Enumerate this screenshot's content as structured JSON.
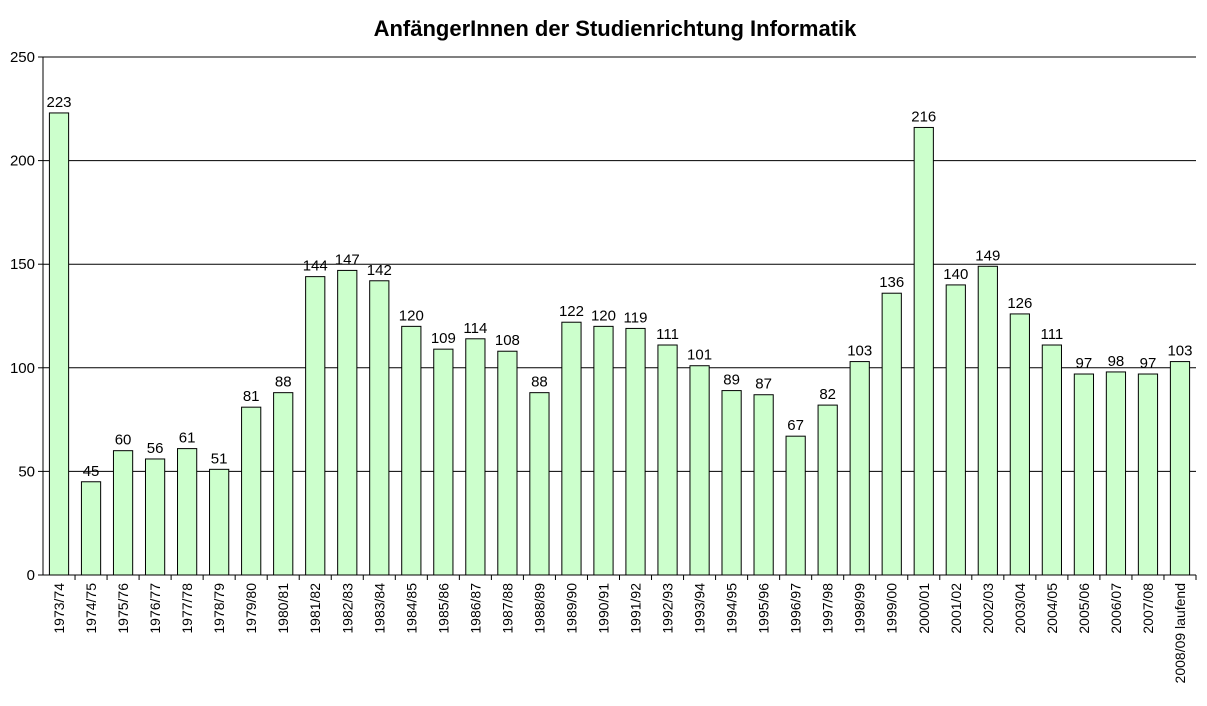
{
  "chart_data": {
    "type": "bar",
    "title": "AnfängerInnen der Studienrichtung Informatik",
    "xlabel": "",
    "ylabel": "",
    "ylim": [
      0,
      250
    ],
    "yticks": [
      0,
      50,
      100,
      150,
      200,
      250
    ],
    "grid": true,
    "categories": [
      "1973/74",
      "1974/75",
      "1975/76",
      "1976/77",
      "1977/78",
      "1978/79",
      "1979/80",
      "1980/81",
      "1981/82",
      "1982/83",
      "1983/84",
      "1984/85",
      "1985/86",
      "1986/87",
      "1987/88",
      "1988/89",
      "1989/90",
      "1990/91",
      "1991/92",
      "1992/93",
      "1993/94",
      "1994/95",
      "1995/96",
      "1996/97",
      "1997/98",
      "1998/99",
      "1999/00",
      "2000/01",
      "2001/02",
      "2002/03",
      "2003/04",
      "2004/05",
      "2005/06",
      "2006/07",
      "2007/08",
      "2008/09 laufend"
    ],
    "values": [
      223,
      45,
      60,
      56,
      61,
      51,
      81,
      88,
      144,
      147,
      142,
      120,
      109,
      114,
      108,
      88,
      122,
      120,
      119,
      111,
      101,
      89,
      87,
      67,
      82,
      103,
      136,
      216,
      140,
      149,
      126,
      111,
      97,
      98,
      97,
      103
    ],
    "bar_color": "#ccffcc",
    "bar_stroke": "#000000"
  }
}
